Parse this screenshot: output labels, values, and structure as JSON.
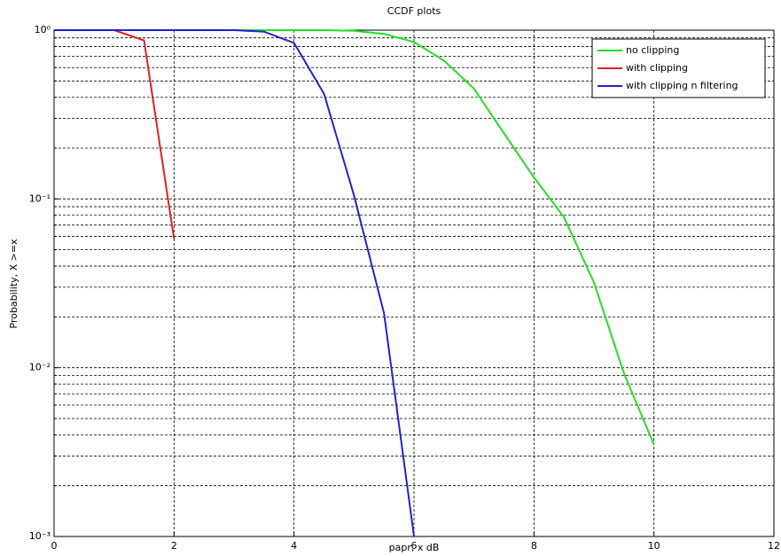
{
  "chart_data": {
    "type": "line",
    "title": "CCDF plots",
    "x_label": "papr, x dB",
    "y_label": "Probability, X >=x",
    "log_y": true,
    "grid": true,
    "legend_position": "top-right",
    "xlim": [
      0,
      12
    ],
    "xticks": [
      0,
      2,
      4,
      6,
      8,
      10,
      12
    ],
    "ylim": [
      0.001,
      1
    ],
    "yticks": [
      {
        "value": 0.001,
        "label": "10⁻³"
      },
      {
        "value": 0.01,
        "label": "10⁻²"
      },
      {
        "value": 0.1,
        "label": "10⁻¹"
      },
      {
        "value": 1,
        "label": "10⁰"
      }
    ],
    "yminorticks": [
      0.002,
      0.003,
      0.004,
      0.005,
      0.006,
      0.007,
      0.008,
      0.009,
      0.02,
      0.03,
      0.04,
      0.05,
      0.06,
      0.07,
      0.08,
      0.09,
      0.2,
      0.3,
      0.4,
      0.5,
      0.6,
      0.7,
      0.8,
      0.9
    ],
    "series": [
      {
        "name": "no clipping",
        "color": "#22e022",
        "x": [
          0,
          0.5,
          1,
          1.5,
          2,
          2.5,
          3,
          3.5,
          4,
          4.5,
          5,
          5.5,
          6,
          6.5,
          7,
          7.5,
          8,
          8.5,
          9,
          9.5,
          10
        ],
        "values": [
          1,
          1,
          1,
          1,
          1,
          1,
          1,
          1,
          1,
          1,
          0.99,
          0.95,
          0.85,
          0.66,
          0.45,
          0.245,
          0.134,
          0.078,
          0.032,
          0.0093,
          0.0035
        ]
      },
      {
        "name": "with clipping",
        "color": "#e02020",
        "x": [
          0,
          0.5,
          1,
          1.5,
          2
        ],
        "values": [
          1,
          1,
          1,
          0.87,
          0.058
        ]
      },
      {
        "name": "with clipping n filtering",
        "color": "#2222d0",
        "x": [
          0,
          0.5,
          1,
          1.5,
          2,
          2.5,
          3,
          3.5,
          4,
          4.5,
          5,
          5.5,
          6
        ],
        "values": [
          1,
          1,
          1,
          1,
          1,
          1,
          1,
          0.98,
          0.84,
          0.42,
          0.105,
          0.021,
          0.001
        ]
      }
    ]
  }
}
